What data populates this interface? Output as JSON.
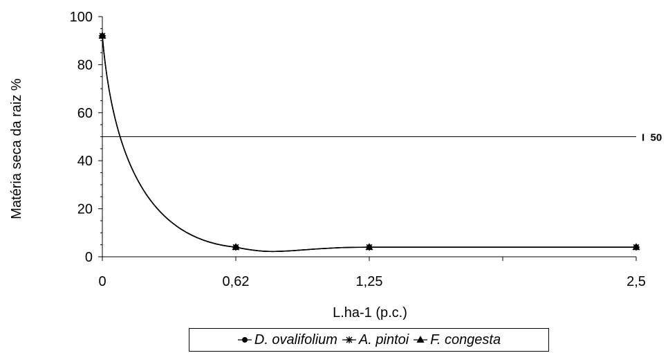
{
  "chart_data": {
    "type": "line",
    "ylabel": "Matéria seca da raiz %",
    "xlabel": "L.ha-1 (p.c.)",
    "x_ticks": [
      "0",
      "0,62",
      "1,25",
      "2,5"
    ],
    "x_values": [
      0,
      0.62,
      1.25,
      2.5
    ],
    "ylim": [
      0,
      100
    ],
    "y_ticks": [
      0,
      20,
      40,
      60,
      80,
      100
    ],
    "reference_line": {
      "y": 50,
      "label": "I 50"
    },
    "series": [
      {
        "name": "D. ovalifolium",
        "marker": "circle",
        "values": [
          92,
          4,
          4,
          4
        ]
      },
      {
        "name": "A. pintoi",
        "marker": "star",
        "values": [
          92,
          4,
          4,
          4
        ]
      },
      {
        "name": "F. congesta",
        "marker": "triangle",
        "values": [
          92,
          4,
          4,
          4
        ]
      }
    ],
    "grid": false,
    "legend_position": "bottom"
  }
}
